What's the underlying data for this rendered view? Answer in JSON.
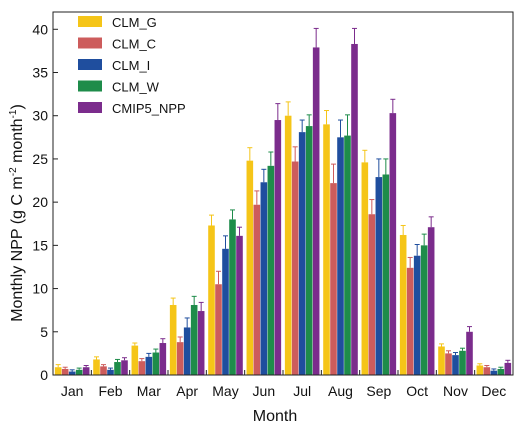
{
  "chart_data": {
    "type": "bar",
    "title": "",
    "xlabel": "Month",
    "ylabel_prefix": "Monthly NPP  (g C m",
    "ylabel_sup1": "-2",
    "ylabel_mid": " month",
    "ylabel_sup2": "-1",
    "ylabel_suffix": ")",
    "ylim": [
      0,
      42
    ],
    "yticks": [
      "0",
      "5",
      "10",
      "15",
      "20",
      "25",
      "30",
      "35",
      "40"
    ],
    "categories": [
      "Jan",
      "Feb",
      "Mar",
      "Apr",
      "May",
      "Jun",
      "Jul",
      "Aug",
      "Sep",
      "Oct",
      "Nov",
      "Dec"
    ],
    "legend_position": "top-left",
    "grid": false,
    "series": [
      {
        "name": "CLM_G",
        "color": "#F5C518",
        "values": [
          0.9,
          1.8,
          3.4,
          8.1,
          17.3,
          24.8,
          30.0,
          29.0,
          24.6,
          16.2,
          3.3,
          1.1
        ],
        "errors": [
          0.3,
          0.3,
          0.3,
          0.8,
          1.2,
          1.5,
          1.6,
          1.6,
          1.4,
          1.1,
          0.3,
          0.2
        ]
      },
      {
        "name": "CLM_C",
        "color": "#CD5C5C",
        "values": [
          0.7,
          1.0,
          1.6,
          3.8,
          10.5,
          19.7,
          24.7,
          22.2,
          18.6,
          12.4,
          2.5,
          0.9
        ],
        "errors": [
          0.2,
          0.2,
          0.3,
          0.6,
          1.5,
          1.6,
          1.7,
          2.2,
          1.7,
          1.2,
          0.3,
          0.2
        ]
      },
      {
        "name": "CLM_I",
        "color": "#1F4E9E",
        "values": [
          0.4,
          0.6,
          2.1,
          5.5,
          14.6,
          22.3,
          28.1,
          27.5,
          22.9,
          13.8,
          2.3,
          0.5
        ],
        "errors": [
          0.2,
          0.2,
          0.4,
          1.1,
          1.5,
          1.5,
          1.4,
          2.0,
          2.1,
          1.3,
          0.3,
          0.2
        ]
      },
      {
        "name": "CLM_W",
        "color": "#1E8C4A",
        "values": [
          0.6,
          1.5,
          2.6,
          8.1,
          18.0,
          24.2,
          28.8,
          27.7,
          23.2,
          15.0,
          2.8,
          0.7
        ],
        "errors": [
          0.2,
          0.3,
          0.4,
          1.0,
          1.1,
          1.6,
          1.3,
          2.4,
          1.8,
          1.3,
          0.3,
          0.2
        ]
      },
      {
        "name": "CMIP5_NPP",
        "color": "#7B2C8C",
        "values": [
          0.9,
          1.7,
          3.7,
          7.4,
          16.1,
          29.5,
          37.9,
          38.3,
          30.3,
          17.1,
          5.0,
          1.4
        ],
        "errors": [
          0.2,
          0.3,
          0.5,
          1.0,
          1.0,
          1.9,
          2.2,
          1.8,
          1.6,
          1.2,
          0.6,
          0.3
        ]
      }
    ]
  }
}
